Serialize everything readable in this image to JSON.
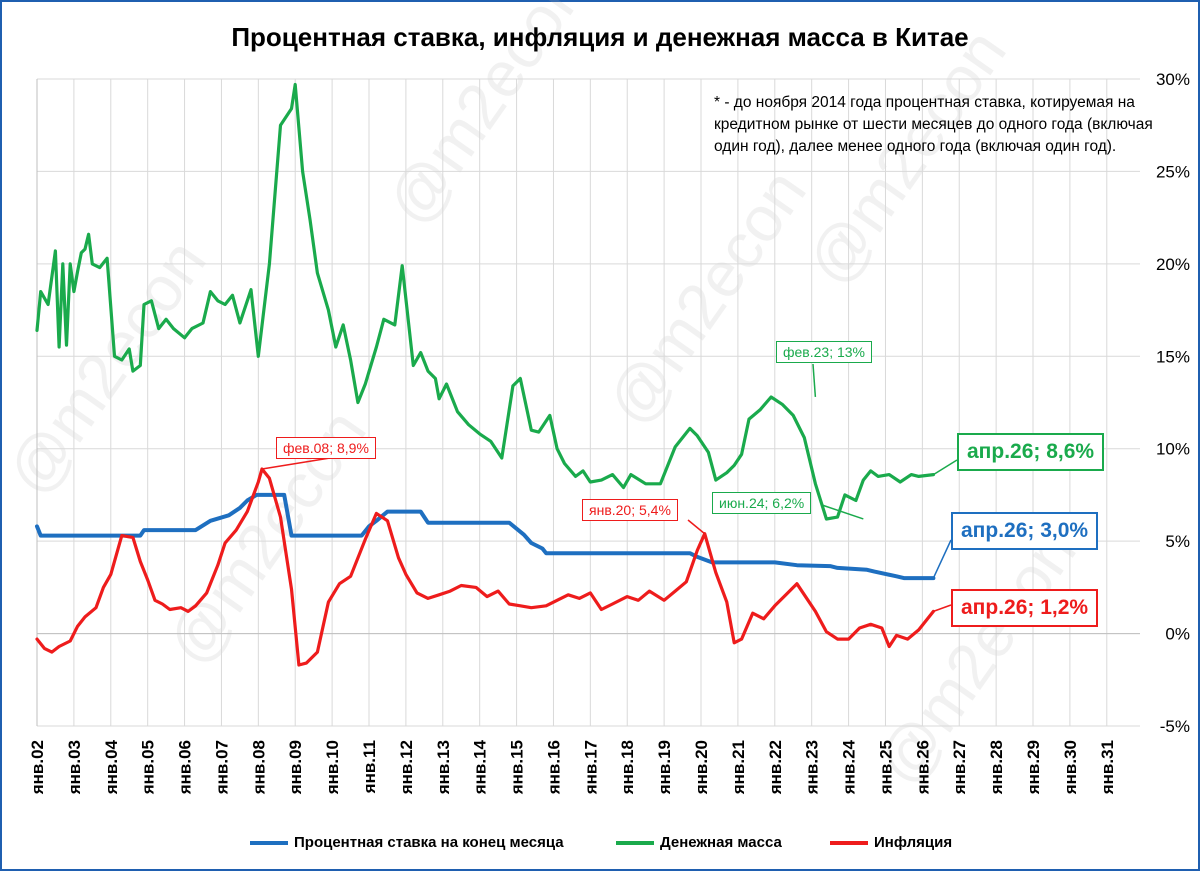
{
  "title": "Процентная ставка, инфляция и денежная масса в Китае",
  "note": "* - до ноября 2014 года процентная ставка, котируемая на кредитном рынке от шести месяцев до одного года (включая один год), далее менее одного года (включая один год).",
  "watermark": "@m2econ",
  "colors": {
    "rate": "#1e6fc0",
    "money": "#1aaa4c",
    "inflation": "#ee1c1c",
    "frame": "#1f5fb0"
  },
  "callouts": {
    "inflation_peak_2008": "фев.08; 8,9%",
    "inflation_2020": "янв.20; 5,4%",
    "money_feb23": "фев.23; 13%",
    "money_jun24": "июн.24; 6,2%",
    "money_last": "апр.26; 8,6%",
    "rate_last": "апр.26; 3,0%",
    "inflation_last": "апр.26; 1,2%"
  },
  "legend": {
    "rate": "Процентная ставка на конец месяца",
    "money": "Денежная масса",
    "inflation": "Инфляция"
  },
  "chart_data": {
    "type": "line",
    "ylim": [
      -5,
      30
    ],
    "y_ticks": [
      "30%",
      "25%",
      "20%",
      "15%",
      "10%",
      "5%",
      "0%",
      "-5%"
    ],
    "y_tick_values": [
      30,
      25,
      20,
      15,
      10,
      5,
      0,
      -5
    ],
    "x_ticks": [
      "янв.02",
      "янв.03",
      "янв.04",
      "янв.05",
      "янв.06",
      "янв.07",
      "янв.08",
      "янв.09",
      "янв.10",
      "янв.11",
      "янв.12",
      "янв.13",
      "янв.14",
      "янв.15",
      "янв.16",
      "янв.17",
      "янв.18",
      "янв.19",
      "янв.20",
      "янв.21",
      "янв.22",
      "янв.23",
      "янв.24",
      "янв.25",
      "янв.26",
      "янв.27",
      "янв.28",
      "янв.29",
      "янв.30",
      "янв.31"
    ],
    "xlim": [
      2002.0,
      2031.9
    ],
    "grid": true,
    "legend_position": "bottom",
    "series": [
      {
        "name": "Процентная ставка на конец месяца",
        "color": "#1e6fc0",
        "x": [
          2002.0,
          2002.1,
          2004.8,
          2004.9,
          2006.3,
          2006.7,
          2007.2,
          2007.5,
          2007.7,
          2007.95,
          2008.7,
          2008.9,
          2009.0,
          2010.8,
          2011.0,
          2011.2,
          2011.5,
          2012.4,
          2012.5,
          2012.6,
          2014.8,
          2015.2,
          2015.4,
          2015.7,
          2015.8,
          2019.7,
          2019.9,
          2020.3,
          2022.0,
          2022.6,
          2023.5,
          2023.7,
          2024.5,
          2024.7,
          2025.3,
          2025.5,
          2026.3
        ],
        "y": [
          5.8,
          5.3,
          5.3,
          5.6,
          5.6,
          6.1,
          6.4,
          6.8,
          7.2,
          7.5,
          7.5,
          5.3,
          5.3,
          5.3,
          5.8,
          6.1,
          6.6,
          6.6,
          6.3,
          6.0,
          6.0,
          5.35,
          4.9,
          4.6,
          4.35,
          4.35,
          4.15,
          3.85,
          3.85,
          3.7,
          3.65,
          3.55,
          3.45,
          3.35,
          3.1,
          3.0,
          3.0
        ]
      },
      {
        "name": "Денежная масса",
        "color": "#1aaa4c",
        "x": [
          2002.0,
          2002.1,
          2002.3,
          2002.5,
          2002.6,
          2002.7,
          2002.8,
          2002.9,
          2003.0,
          2003.1,
          2003.2,
          2003.3,
          2003.4,
          2003.5,
          2003.7,
          2003.9,
          2004.1,
          2004.3,
          2004.5,
          2004.6,
          2004.8,
          2004.9,
          2005.1,
          2005.3,
          2005.5,
          2005.7,
          2006.0,
          2006.2,
          2006.5,
          2006.7,
          2006.9,
          2007.1,
          2007.3,
          2007.5,
          2007.8,
          2008.0,
          2008.3,
          2008.6,
          2008.9,
          2009.0,
          2009.2,
          2009.4,
          2009.6,
          2009.9,
          2010.1,
          2010.3,
          2010.5,
          2010.7,
          2010.9,
          2011.2,
          2011.4,
          2011.7,
          2011.9,
          2012.2,
          2012.4,
          2012.6,
          2012.8,
          2012.9,
          2013.1,
          2013.4,
          2013.7,
          2014.0,
          2014.3,
          2014.6,
          2014.9,
          2015.1,
          2015.4,
          2015.6,
          2015.9,
          2016.1,
          2016.3,
          2016.6,
          2016.8,
          2017.0,
          2017.3,
          2017.6,
          2017.9,
          2018.1,
          2018.5,
          2018.9,
          2019.3,
          2019.7,
          2019.9,
          2020.2,
          2020.4,
          2020.7,
          2020.9,
          2021.1,
          2021.3,
          2021.6,
          2021.9,
          2022.2,
          2022.5,
          2022.8,
          2023.1,
          2023.4,
          2023.7,
          2023.9,
          2024.2,
          2024.4,
          2024.6,
          2024.8,
          2025.1,
          2025.4,
          2025.7,
          2025.9,
          2026.3
        ],
        "y": [
          16.4,
          18.5,
          17.8,
          20.7,
          15.5,
          20.0,
          15.6,
          20.0,
          18.5,
          19.6,
          20.6,
          20.8,
          21.6,
          20.0,
          19.8,
          20.3,
          15.0,
          14.8,
          15.4,
          14.2,
          14.5,
          17.8,
          18.0,
          16.5,
          17.0,
          16.5,
          16.0,
          16.5,
          16.8,
          18.5,
          18.0,
          17.8,
          18.3,
          16.8,
          18.6,
          15.0,
          20.0,
          27.5,
          28.4,
          29.7,
          25.0,
          22.4,
          19.5,
          17.5,
          15.5,
          16.7,
          14.8,
          12.5,
          13.5,
          15.5,
          17.0,
          16.7,
          19.9,
          14.5,
          15.2,
          14.2,
          13.8,
          12.7,
          13.5,
          12.0,
          11.3,
          10.8,
          10.4,
          9.5,
          13.4,
          13.8,
          11.0,
          10.9,
          11.8,
          10.0,
          9.2,
          8.5,
          8.8,
          8.2,
          8.3,
          8.6,
          7.9,
          8.6,
          8.1,
          8.1,
          10.1,
          11.1,
          10.7,
          9.8,
          8.3,
          8.7,
          9.1,
          9.7,
          11.6,
          12.1,
          12.8,
          12.4,
          11.8,
          10.6,
          8.1,
          6.2,
          6.3,
          7.5,
          7.2,
          8.3,
          8.8,
          8.5,
          8.6,
          8.2,
          8.6,
          8.5,
          8.6
        ]
      },
      {
        "name": "Инфляция",
        "color": "#ee1c1c",
        "x": [
          2002.0,
          2002.2,
          2002.4,
          2002.6,
          2002.9,
          2003.1,
          2003.3,
          2003.6,
          2003.8,
          2004.0,
          2004.3,
          2004.6,
          2004.8,
          2005.0,
          2005.2,
          2005.4,
          2005.6,
          2005.9,
          2006.1,
          2006.3,
          2006.6,
          2006.9,
          2007.1,
          2007.4,
          2007.7,
          2008.0,
          2008.1,
          2008.3,
          2008.6,
          2008.9,
          2009.1,
          2009.3,
          2009.6,
          2009.9,
          2010.2,
          2010.5,
          2010.9,
          2011.2,
          2011.5,
          2011.8,
          2012.0,
          2012.3,
          2012.6,
          2012.9,
          2013.2,
          2013.5,
          2013.9,
          2014.2,
          2014.5,
          2014.8,
          2015.1,
          2015.4,
          2015.8,
          2016.1,
          2016.4,
          2016.7,
          2017.0,
          2017.3,
          2017.6,
          2018.0,
          2018.3,
          2018.6,
          2019.0,
          2019.3,
          2019.6,
          2019.9,
          2020.1,
          2020.4,
          2020.7,
          2020.9,
          2021.1,
          2021.4,
          2021.7,
          2022.0,
          2022.3,
          2022.6,
          2022.9,
          2023.1,
          2023.4,
          2023.7,
          2024.0,
          2024.3,
          2024.6,
          2024.9,
          2025.1,
          2025.3,
          2025.6,
          2025.9,
          2026.3
        ],
        "y": [
          -0.3,
          -0.8,
          -1.0,
          -0.7,
          -0.4,
          0.4,
          0.9,
          1.4,
          2.5,
          3.2,
          5.3,
          5.2,
          3.9,
          2.9,
          1.8,
          1.6,
          1.3,
          1.4,
          1.2,
          1.5,
          2.2,
          3.7,
          4.9,
          5.6,
          6.6,
          8.2,
          8.9,
          8.4,
          6.3,
          2.4,
          -1.7,
          -1.6,
          -1.0,
          1.7,
          2.7,
          3.1,
          5.1,
          6.5,
          6.1,
          4.1,
          3.2,
          2.2,
          1.9,
          2.1,
          2.3,
          2.6,
          2.5,
          2.0,
          2.3,
          1.6,
          1.5,
          1.4,
          1.5,
          1.8,
          2.1,
          1.9,
          2.2,
          1.3,
          1.6,
          2.0,
          1.8,
          2.3,
          1.8,
          2.3,
          2.8,
          4.5,
          5.4,
          3.3,
          1.7,
          -0.5,
          -0.3,
          1.1,
          0.8,
          1.5,
          2.1,
          2.7,
          1.8,
          1.2,
          0.1,
          -0.3,
          -0.3,
          0.3,
          0.5,
          0.3,
          -0.7,
          -0.1,
          -0.3,
          0.2,
          1.2
        ]
      }
    ]
  }
}
